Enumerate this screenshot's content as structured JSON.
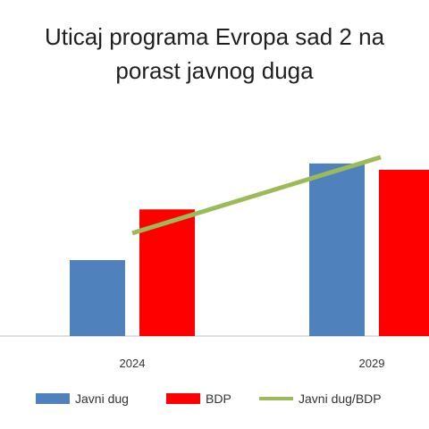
{
  "chart_data": {
    "type": "bar",
    "title_lines": [
      "Uticaj programa Evropa sad 2 na",
      "porast javnog duga"
    ],
    "categories": [
      "2024",
      "2029"
    ],
    "series": [
      {
        "name": "Javni dug",
        "kind": "bar",
        "color": "#4f81bd",
        "values": [
          48,
          109
        ]
      },
      {
        "name": "BDP",
        "kind": "bar",
        "color": "#ff0000",
        "values": [
          80,
          105
        ]
      },
      {
        "name": "Javni dug/BDP",
        "kind": "line",
        "color": "#9bbb59",
        "values": [
          65,
          113
        ]
      }
    ],
    "ylim": [
      0,
      140
    ],
    "grid": false,
    "legend_position": "bottom"
  }
}
